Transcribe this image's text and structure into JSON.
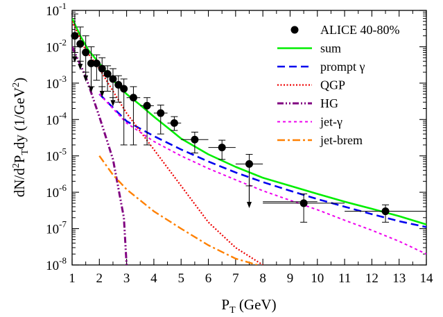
{
  "chart_data": {
    "type": "scatter",
    "title": "",
    "xlabel": "P_T (GeV)",
    "ylabel": "dN/d²P_Tdy (1/GeV²)",
    "xlim": [
      1,
      14
    ],
    "ylim": [
      1e-08,
      0.1
    ],
    "yscale": "log",
    "x_ticks": [
      1,
      2,
      3,
      4,
      5,
      6,
      7,
      8,
      9,
      10,
      11,
      12,
      13,
      14
    ],
    "y_ticks": [
      1e-08,
      1e-07,
      1e-06,
      1e-05,
      0.0001,
      0.001,
      0.01,
      0.1
    ],
    "grid": false,
    "legend_position": "top-right",
    "colors": {
      "data": "#000000",
      "sum": "#00ee00",
      "prompt": "#0000ee",
      "qgp": "#ee0000",
      "hg": "#800080",
      "jetgamma": "#ee00ee",
      "jetbrem": "#ff8000"
    },
    "data_series": {
      "name": "ALICE 40-80%",
      "points": [
        {
          "x": 1.1,
          "y": 0.02,
          "xerr": 0.1,
          "ylo": 0.007,
          "yhi": 0.08
        },
        {
          "x": 1.3,
          "y": 0.012,
          "xerr": 0.1,
          "ylo": 0.004,
          "yhi": 0.035
        },
        {
          "x": 1.5,
          "y": 0.007,
          "xerr": 0.1,
          "ylo": 0.002,
          "yhi": 0.02
        },
        {
          "x": 1.7,
          "y": 0.0035,
          "xerr": 0.1,
          "ylo": 0.0008,
          "yhi": 0.01
        },
        {
          "x": 1.9,
          "y": 0.0035,
          "xerr": 0.1,
          "ylo": 0.0012,
          "yhi": 0.006
        },
        {
          "x": 2.1,
          "y": 0.0025,
          "xerr": 0.1,
          "ylo": 0.0008,
          "yhi": 0.005
        },
        {
          "x": 2.3,
          "y": 0.0018,
          "xerr": 0.1,
          "ylo": 0.0006,
          "yhi": 0.003
        },
        {
          "x": 2.5,
          "y": 0.0013,
          "xerr": 0.1,
          "ylo": 0.0004,
          "yhi": 0.0025
        },
        {
          "x": 2.7,
          "y": 0.0009,
          "xerr": 0.1,
          "ylo": 0.0003,
          "yhi": 0.0016
        },
        {
          "x": 2.9,
          "y": 0.0007,
          "xerr": 0.1,
          "ylo": 2e-05,
          "yhi": 0.0013
        },
        {
          "x": 3.25,
          "y": 0.0004,
          "xerr": 0.25,
          "ylo": 2e-05,
          "yhi": 0.0008
        },
        {
          "x": 3.75,
          "y": 0.00024,
          "xerr": 0.25,
          "ylo": 2e-05,
          "yhi": 0.0004
        },
        {
          "x": 4.25,
          "y": 0.00015,
          "xerr": 0.25,
          "ylo": 4e-05,
          "yhi": 0.00025
        },
        {
          "x": 4.75,
          "y": 8e-05,
          "xerr": 0.25,
          "ylo": 5e-05,
          "yhi": 0.00012
        },
        {
          "x": 5.5,
          "y": 2.8e-05,
          "xerr": 0.5,
          "ylo": 1.2e-05,
          "yhi": 4.5e-05
        },
        {
          "x": 6.5,
          "y": 1.7e-05,
          "xerr": 0.5,
          "ylo": 8e-06,
          "yhi": 2.7e-05
        },
        {
          "x": 7.5,
          "y": 6e-06,
          "xerr": 0.5,
          "ylo": 1.5e-06,
          "yhi": 1.1e-05
        },
        {
          "x": 9.5,
          "y": 5e-07,
          "xerr": 1.5,
          "ylo": 1.5e-07,
          "yhi": 9e-07
        },
        {
          "x": 12.5,
          "y": 3e-07,
          "xerr": 1.5,
          "ylo": 1.5e-07,
          "yhi": 4.5e-07
        }
      ],
      "upper_limits": [
        {
          "x": 1.1,
          "y": 0.007,
          "y_to": 0.004
        },
        {
          "x": 1.3,
          "y": 0.004,
          "y_to": 0.0025
        },
        {
          "x": 1.5,
          "y": 0.002,
          "y_to": 0.0012
        },
        {
          "x": 1.7,
          "y": 0.0012,
          "y_to": 0.0006
        },
        {
          "x": 2.1,
          "y": 0.0008,
          "y_to": 0.00045
        },
        {
          "x": 2.5,
          "y": 0.0004,
          "y_to": 0.00025
        },
        {
          "x": 7.5,
          "y": 2.5e-06,
          "y_to": 4e-07
        }
      ],
      "bins_no_marker": [
        {
          "x": 9.0,
          "y": 5.5e-07,
          "xerr": 1.0,
          "ylo": 5.5e-07,
          "yhi": 5.5e-07
        }
      ]
    },
    "series": [
      {
        "name": "sum",
        "style": "solid",
        "x": [
          1,
          1.3,
          1.6,
          2,
          2.5,
          3,
          3.5,
          4,
          4.5,
          5,
          6,
          7,
          8,
          9,
          10,
          11,
          12,
          13,
          14
        ],
        "y": [
          0.06,
          0.02,
          0.008,
          0.0035,
          0.0012,
          0.0005,
          0.00025,
          0.00012,
          6e-05,
          3e-05,
          1.1e-05,
          5e-06,
          2.5e-06,
          1.5e-06,
          9e-07,
          5.5e-07,
          3.5e-07,
          2.2e-07,
          1.3e-07
        ]
      },
      {
        "name": "prompt γ",
        "style": "dashed",
        "x": [
          2,
          3,
          4,
          5,
          6,
          7,
          8,
          9,
          10,
          11,
          12,
          13,
          14
        ],
        "y": [
          0.0005,
          9e-05,
          3.5e-05,
          1.5e-05,
          7e-06,
          3.5e-06,
          1.9e-06,
          1.1e-06,
          6.5e-07,
          4e-07,
          2.5e-07,
          1.6e-07,
          1.1e-07
        ]
      },
      {
        "name": "QGP",
        "style": "dotted",
        "x": [
          1,
          1.5,
          2,
          2.5,
          3,
          4,
          5,
          6,
          7,
          8
        ],
        "y": [
          0.05,
          0.008,
          0.0025,
          0.0006,
          0.00015,
          1.5e-05,
          1.5e-06,
          1.5e-07,
          3e-08,
          1e-08
        ]
      },
      {
        "name": "HG",
        "style": "dashdotdot",
        "x": [
          1,
          1.5,
          2,
          2.5,
          2.9,
          3.0
        ],
        "y": [
          0.01,
          0.0015,
          0.00012,
          8e-06,
          2e-07,
          1e-08
        ]
      },
      {
        "name": "jet-γ",
        "style": "dashdot-fine",
        "x": [
          2,
          3,
          4,
          5,
          6,
          7,
          8,
          9,
          10,
          11,
          12,
          13,
          14
        ],
        "y": [
          0.0005,
          8e-05,
          2.5e-05,
          1e-05,
          4.5e-06,
          2.2e-06,
          1.1e-06,
          6e-07,
          3.3e-07,
          1.7e-07,
          9e-08,
          4.5e-08,
          2e-08
        ]
      },
      {
        "name": "jet-brem",
        "style": "dashdot",
        "x": [
          2,
          2.5,
          3,
          4,
          5,
          6,
          7,
          7.8
        ],
        "y": [
          1e-05,
          3e-06,
          1.2e-06,
          3e-07,
          1e-07,
          3.5e-08,
          1.5e-08,
          1e-08
        ]
      }
    ]
  }
}
